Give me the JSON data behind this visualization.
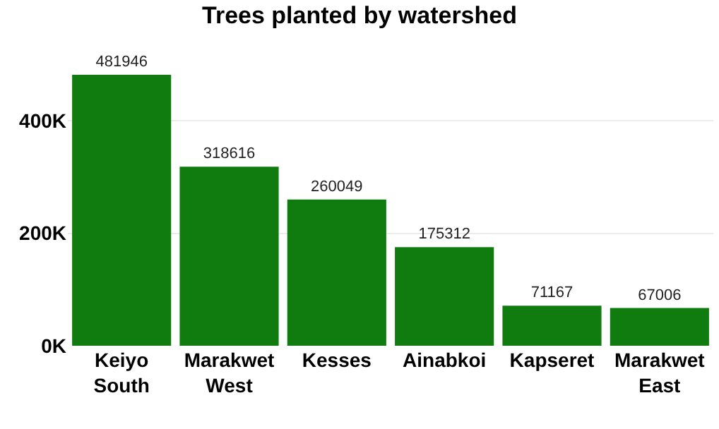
{
  "chart_data": {
    "type": "bar",
    "title": "Trees planted by watershed",
    "categories": [
      "Keiyo South",
      "Marakwet West",
      "Kesses",
      "Ainabkoi",
      "Kapseret",
      "Marakwet East"
    ],
    "values": [
      481946,
      318616,
      260049,
      175312,
      71167,
      67006
    ],
    "color": "#107c10",
    "ylim": [
      0,
      481946
    ],
    "yticks": [
      {
        "value": 0,
        "label": "0K"
      },
      {
        "value": 200000,
        "label": "200K"
      },
      {
        "value": 400000,
        "label": "400K"
      }
    ],
    "grid": "y",
    "data_labels": true
  }
}
